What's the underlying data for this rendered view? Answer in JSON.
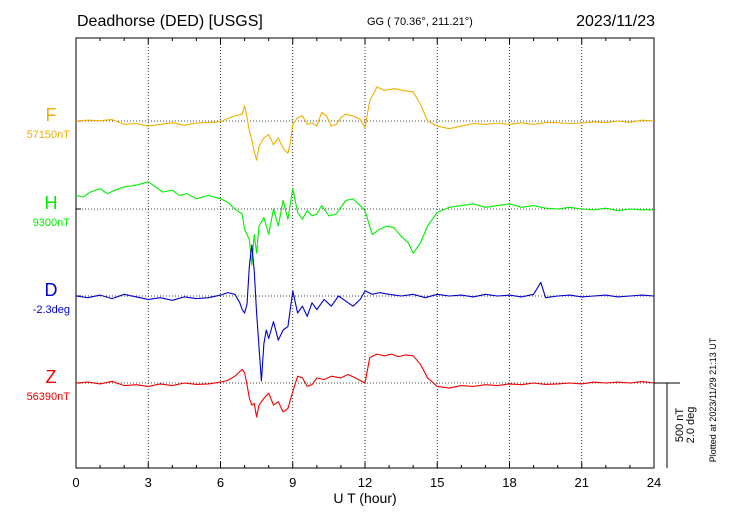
{
  "header": {
    "station": "Deadhorse (DED)  [USGS]",
    "coords": "GG ( 70.36°, 211.21°)",
    "date": "2023/11/23"
  },
  "footer": {
    "xlabel": "U T (hour)",
    "plotted": "Plotted at 2023/11/29 21:13 UT"
  },
  "scale_bar": {
    "nt_label": "500 nT",
    "deg_label": "2.0 deg"
  },
  "chart_data": {
    "type": "line",
    "title": "Deadhorse (DED)  [USGS]",
    "xlabel": "U T (hour)",
    "ylabel": "",
    "xlim": [
      0,
      24
    ],
    "xticks": [
      0,
      3,
      6,
      9,
      12,
      15,
      18,
      21,
      24
    ],
    "grid": true,
    "units_note": "offsets from baseline in nT (D in equivalent nT); scale bar = 500 nT / 2.0 deg",
    "series": [
      {
        "name": "F",
        "baseline_label": "57150nT",
        "color": "#f0b000",
        "points": [
          [
            0,
            0
          ],
          [
            0.5,
            5
          ],
          [
            1,
            2
          ],
          [
            1.5,
            8
          ],
          [
            2,
            -20
          ],
          [
            2.5,
            -15
          ],
          [
            3,
            -30
          ],
          [
            3.5,
            -20
          ],
          [
            4,
            -10
          ],
          [
            4.5,
            -25
          ],
          [
            5,
            -12
          ],
          [
            5.5,
            -8
          ],
          [
            6,
            -5
          ],
          [
            6.3,
            15
          ],
          [
            6.6,
            30
          ],
          [
            6.9,
            40
          ],
          [
            7.0,
            90
          ],
          [
            7.1,
            20
          ],
          [
            7.2,
            -60
          ],
          [
            7.3,
            -110
          ],
          [
            7.4,
            -180
          ],
          [
            7.5,
            -230
          ],
          [
            7.6,
            -150
          ],
          [
            7.8,
            -100
          ],
          [
            8.0,
            -80
          ],
          [
            8.2,
            -140
          ],
          [
            8.4,
            -100
          ],
          [
            8.6,
            -160
          ],
          [
            8.8,
            -190
          ],
          [
            8.9,
            -130
          ],
          [
            9.0,
            -20
          ],
          [
            9.2,
            20
          ],
          [
            9.4,
            30
          ],
          [
            9.6,
            -20
          ],
          [
            9.8,
            -10
          ],
          [
            10.0,
            -30
          ],
          [
            10.2,
            50
          ],
          [
            10.4,
            30
          ],
          [
            10.6,
            -30
          ],
          [
            10.8,
            -20
          ],
          [
            11.0,
            20
          ],
          [
            11.2,
            40
          ],
          [
            11.5,
            30
          ],
          [
            11.8,
            10
          ],
          [
            12.0,
            -40
          ],
          [
            12.2,
            120
          ],
          [
            12.5,
            200
          ],
          [
            12.8,
            180
          ],
          [
            13.2,
            190
          ],
          [
            13.6,
            180
          ],
          [
            14.0,
            170
          ],
          [
            14.3,
            100
          ],
          [
            14.6,
            0
          ],
          [
            15.0,
            -30
          ],
          [
            15.5,
            -45
          ],
          [
            16.0,
            -30
          ],
          [
            16.5,
            -15
          ],
          [
            17.0,
            -20
          ],
          [
            17.5,
            -12
          ],
          [
            18.0,
            -20
          ],
          [
            18.5,
            -10
          ],
          [
            19.0,
            -20
          ],
          [
            19.5,
            -8
          ],
          [
            20.0,
            -10
          ],
          [
            20.5,
            -15
          ],
          [
            21.0,
            -12
          ],
          [
            21.5,
            -5
          ],
          [
            22.0,
            -10
          ],
          [
            22.5,
            0
          ],
          [
            23.0,
            -8
          ],
          [
            23.5,
            5
          ],
          [
            24.0,
            0
          ]
        ]
      },
      {
        "name": "H",
        "baseline_label": "9300nT",
        "color": "#00ee00",
        "points": [
          [
            0,
            80
          ],
          [
            0.3,
            70
          ],
          [
            0.6,
            100
          ],
          [
            1.0,
            120
          ],
          [
            1.3,
            90
          ],
          [
            1.6,
            110
          ],
          [
            2.0,
            130
          ],
          [
            2.5,
            140
          ],
          [
            3.0,
            160
          ],
          [
            3.3,
            130
          ],
          [
            3.6,
            100
          ],
          [
            4.0,
            110
          ],
          [
            4.3,
            80
          ],
          [
            4.6,
            90
          ],
          [
            5.0,
            60
          ],
          [
            5.5,
            80
          ],
          [
            6.0,
            60
          ],
          [
            6.3,
            40
          ],
          [
            6.6,
            0
          ],
          [
            6.9,
            -30
          ],
          [
            7.0,
            -120
          ],
          [
            7.2,
            -180
          ],
          [
            7.3,
            -330
          ],
          [
            7.4,
            -150
          ],
          [
            7.5,
            -260
          ],
          [
            7.6,
            -100
          ],
          [
            7.8,
            -50
          ],
          [
            8.0,
            -150
          ],
          [
            8.2,
            0
          ],
          [
            8.4,
            -100
          ],
          [
            8.6,
            50
          ],
          [
            8.8,
            -60
          ],
          [
            9.0,
            120
          ],
          [
            9.2,
            -20
          ],
          [
            9.4,
            -60
          ],
          [
            9.6,
            -10
          ],
          [
            9.8,
            -40
          ],
          [
            10.0,
            -30
          ],
          [
            10.2,
            20
          ],
          [
            10.5,
            -40
          ],
          [
            10.8,
            -30
          ],
          [
            11.0,
            10
          ],
          [
            11.2,
            50
          ],
          [
            11.5,
            60
          ],
          [
            11.8,
            20
          ],
          [
            12.0,
            -10
          ],
          [
            12.3,
            -150
          ],
          [
            12.6,
            -120
          ],
          [
            12.9,
            -100
          ],
          [
            13.2,
            -110
          ],
          [
            13.5,
            -160
          ],
          [
            13.8,
            -200
          ],
          [
            14.0,
            -260
          ],
          [
            14.3,
            -200
          ],
          [
            14.6,
            -100
          ],
          [
            15.0,
            -20
          ],
          [
            15.5,
            10
          ],
          [
            16.0,
            20
          ],
          [
            16.5,
            30
          ],
          [
            17.0,
            10
          ],
          [
            17.5,
            20
          ],
          [
            18.0,
            30
          ],
          [
            18.5,
            10
          ],
          [
            19.0,
            20
          ],
          [
            19.5,
            5
          ],
          [
            20.0,
            0
          ],
          [
            20.5,
            10
          ],
          [
            21.0,
            0
          ],
          [
            21.5,
            -5
          ],
          [
            22.0,
            5
          ],
          [
            22.5,
            -10
          ],
          [
            23.0,
            0
          ],
          [
            23.5,
            -5
          ],
          [
            24.0,
            -5
          ]
        ]
      },
      {
        "name": "D",
        "baseline_label": "-2.3deg",
        "color": "#0000cc",
        "points": [
          [
            0,
            0
          ],
          [
            0.5,
            -10
          ],
          [
            1,
            5
          ],
          [
            1.5,
            -15
          ],
          [
            2,
            10
          ],
          [
            2.5,
            -5
          ],
          [
            3,
            -20
          ],
          [
            3.5,
            -10
          ],
          [
            4,
            -25
          ],
          [
            4.5,
            -5
          ],
          [
            5,
            -15
          ],
          [
            5.5,
            -10
          ],
          [
            6,
            5
          ],
          [
            6.3,
            20
          ],
          [
            6.6,
            10
          ],
          [
            6.8,
            -40
          ],
          [
            6.9,
            -80
          ],
          [
            7.0,
            -100
          ],
          [
            7.1,
            -50
          ],
          [
            7.2,
            180
          ],
          [
            7.3,
            300
          ],
          [
            7.4,
            150
          ],
          [
            7.5,
            -100
          ],
          [
            7.6,
            -300
          ],
          [
            7.7,
            -500
          ],
          [
            7.8,
            -280
          ],
          [
            7.9,
            -200
          ],
          [
            8.0,
            -250
          ],
          [
            8.2,
            -150
          ],
          [
            8.4,
            -260
          ],
          [
            8.6,
            -200
          ],
          [
            8.8,
            -180
          ],
          [
            9.0,
            30
          ],
          [
            9.2,
            -100
          ],
          [
            9.4,
            -60
          ],
          [
            9.6,
            -120
          ],
          [
            9.8,
            -40
          ],
          [
            10.0,
            -80
          ],
          [
            10.3,
            -20
          ],
          [
            10.6,
            -60
          ],
          [
            10.9,
            0
          ],
          [
            11.2,
            -30
          ],
          [
            11.5,
            -60
          ],
          [
            11.8,
            -20
          ],
          [
            12.0,
            30
          ],
          [
            12.3,
            10
          ],
          [
            12.6,
            20
          ],
          [
            13.0,
            10
          ],
          [
            13.5,
            0
          ],
          [
            14.0,
            10
          ],
          [
            14.5,
            -10
          ],
          [
            15.0,
            10
          ],
          [
            15.5,
            0
          ],
          [
            16.0,
            5
          ],
          [
            16.5,
            -5
          ],
          [
            17.0,
            10
          ],
          [
            17.5,
            0
          ],
          [
            18.0,
            5
          ],
          [
            18.5,
            -5
          ],
          [
            19.0,
            10
          ],
          [
            19.3,
            80
          ],
          [
            19.5,
            -10
          ],
          [
            20.0,
            0
          ],
          [
            20.5,
            5
          ],
          [
            21.0,
            -5
          ],
          [
            21.5,
            0
          ],
          [
            22.0,
            5
          ],
          [
            22.5,
            -5
          ],
          [
            23.0,
            0
          ],
          [
            23.5,
            5
          ],
          [
            24.0,
            0
          ]
        ]
      },
      {
        "name": "Z",
        "baseline_label": "56390nT",
        "color": "#ee0000",
        "points": [
          [
            0,
            0
          ],
          [
            0.5,
            5
          ],
          [
            1,
            -5
          ],
          [
            1.5,
            10
          ],
          [
            2,
            -15
          ],
          [
            2.5,
            -10
          ],
          [
            3,
            -20
          ],
          [
            3.5,
            -5
          ],
          [
            4,
            -15
          ],
          [
            4.5,
            0
          ],
          [
            5,
            -8
          ],
          [
            5.5,
            -5
          ],
          [
            6,
            5
          ],
          [
            6.3,
            15
          ],
          [
            6.6,
            40
          ],
          [
            6.9,
            80
          ],
          [
            7.0,
            60
          ],
          [
            7.1,
            -10
          ],
          [
            7.2,
            -90
          ],
          [
            7.3,
            -130
          ],
          [
            7.4,
            -120
          ],
          [
            7.5,
            -200
          ],
          [
            7.6,
            -130
          ],
          [
            7.8,
            -90
          ],
          [
            8.0,
            -60
          ],
          [
            8.2,
            -130
          ],
          [
            8.4,
            -110
          ],
          [
            8.6,
            -170
          ],
          [
            8.8,
            -150
          ],
          [
            9.0,
            -50
          ],
          [
            9.2,
            40
          ],
          [
            9.4,
            30
          ],
          [
            9.6,
            -20
          ],
          [
            9.8,
            -10
          ],
          [
            10.0,
            30
          ],
          [
            10.3,
            20
          ],
          [
            10.6,
            40
          ],
          [
            11.0,
            30
          ],
          [
            11.3,
            50
          ],
          [
            11.6,
            30
          ],
          [
            12.0,
            0
          ],
          [
            12.2,
            150
          ],
          [
            12.5,
            170
          ],
          [
            12.8,
            160
          ],
          [
            13.1,
            170
          ],
          [
            13.4,
            155
          ],
          [
            13.7,
            165
          ],
          [
            14.0,
            160
          ],
          [
            14.3,
            110
          ],
          [
            14.6,
            30
          ],
          [
            15.0,
            -20
          ],
          [
            15.5,
            -30
          ],
          [
            16.0,
            -15
          ],
          [
            16.5,
            -20
          ],
          [
            17.0,
            -10
          ],
          [
            17.5,
            -15
          ],
          [
            18.0,
            -5
          ],
          [
            18.5,
            -10
          ],
          [
            19.0,
            0
          ],
          [
            19.5,
            -8
          ],
          [
            20.0,
            -5
          ],
          [
            20.5,
            0
          ],
          [
            21.0,
            -5
          ],
          [
            21.5,
            5
          ],
          [
            22.0,
            0
          ],
          [
            22.5,
            5
          ],
          [
            23.0,
            0
          ],
          [
            23.5,
            8
          ],
          [
            24.0,
            0
          ]
        ]
      }
    ]
  }
}
